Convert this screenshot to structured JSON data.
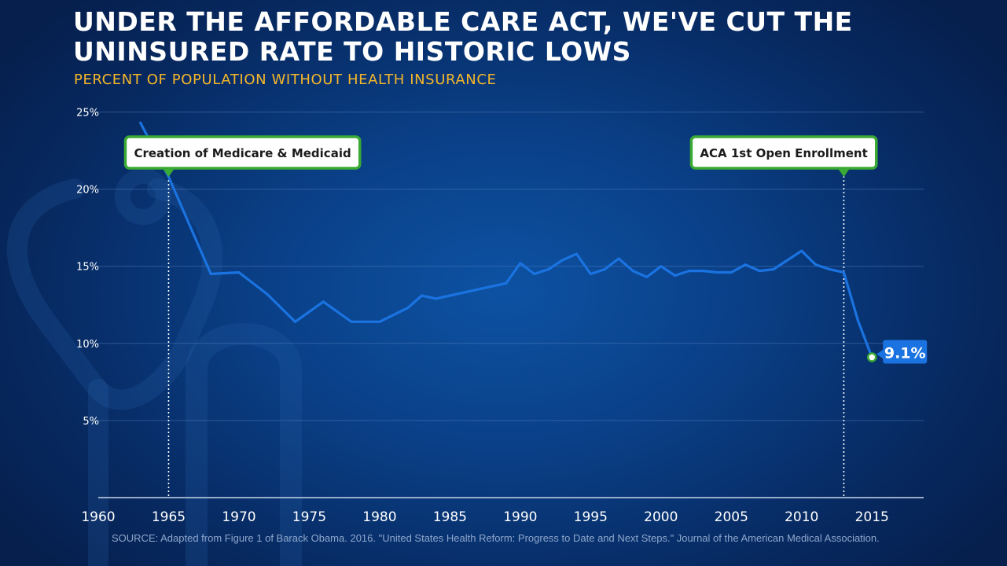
{
  "header": {
    "title": "UNDER THE AFFORDABLE CARE ACT, WE'VE CUT THE UNINSURED RATE TO HISTORIC LOWS",
    "subtitle": "PERCENT OF POPULATION WITHOUT HEALTH INSURANCE"
  },
  "footer": {
    "source": "SOURCE: Adapted from Figure 1 of Barack Obama. 2016.  \"United States Health Reform: Progress to Date and Next Steps.\"  Journal of the American Medical Association."
  },
  "colors": {
    "line": "#1a73e0",
    "annotation_border": "#3aaa35",
    "subtitle": "#f5b72a",
    "end_label_bg": "#1a73e0"
  },
  "chart_data": {
    "type": "line",
    "title": "UNDER THE AFFORDABLE CARE ACT, WE'VE CUT THE UNINSURED RATE TO HISTORIC LOWS",
    "subtitle": "PERCENT OF POPULATION WITHOUT HEALTH INSURANCE",
    "xlabel": "",
    "ylabel": "",
    "xlim": [
      1960,
      2018
    ],
    "ylim": [
      0,
      25
    ],
    "x_ticks": [
      "1960",
      "1965",
      "1970",
      "1975",
      "1980",
      "1985",
      "1990",
      "1995",
      "2000",
      "2005",
      "2010",
      "2015"
    ],
    "y_ticks": [
      {
        "value": 5,
        "label": "5%"
      },
      {
        "value": 10,
        "label": "10%"
      },
      {
        "value": 15,
        "label": "15%"
      },
      {
        "value": 20,
        "label": "20%"
      },
      {
        "value": 25,
        "label": "25%"
      }
    ],
    "grid": true,
    "legend": "none",
    "series": [
      {
        "x": [
          1963,
          1965,
          1968,
          1970,
          1972,
          1974,
          1976,
          1978,
          1980,
          1982,
          1983,
          1984,
          1985,
          1986,
          1987,
          1988,
          1989,
          1990,
          1991,
          1992,
          1993,
          1994,
          1995,
          1996,
          1997,
          1998,
          1999,
          2000,
          2001,
          2002,
          2003,
          2004,
          2005,
          2006,
          2007,
          2008,
          2009,
          2010,
          2011,
          2012,
          2013,
          2014,
          2015
        ],
        "y": [
          24.3,
          20.8,
          14.5,
          14.6,
          13.2,
          11.4,
          12.7,
          11.4,
          11.4,
          12.3,
          13.1,
          12.9,
          13.1,
          13.3,
          13.5,
          13.7,
          13.9,
          15.2,
          14.5,
          14.8,
          15.4,
          15.8,
          14.5,
          14.8,
          15.5,
          14.7,
          14.3,
          15.0,
          14.4,
          14.7,
          14.7,
          14.6,
          14.6,
          15.1,
          14.7,
          14.8,
          15.4,
          16.0,
          15.1,
          14.8,
          14.6,
          11.5,
          9.1
        ]
      }
    ],
    "annotations": [
      {
        "x": 1965,
        "label": "Creation of Medicare & Medicaid"
      },
      {
        "x": 2013,
        "label": "ACA 1st Open Enrollment"
      }
    ],
    "end_label": {
      "x": 2015,
      "y": 9.1,
      "label": "9.1%"
    }
  }
}
